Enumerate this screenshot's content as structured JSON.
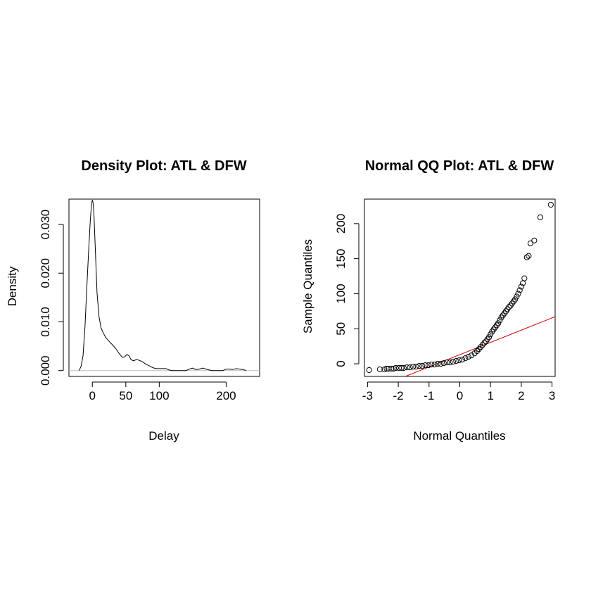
{
  "chart_data": [
    {
      "type": "line",
      "title": "Density Plot: ATL & DFW",
      "xlabel": "Delay",
      "ylabel": "Density",
      "xlim": [
        -35,
        250
      ],
      "ylim": [
        -0.0012,
        0.0352
      ],
      "x_ticks": [
        0,
        50,
        100,
        200
      ],
      "y_ticks": [
        0.0,
        0.01,
        0.02,
        0.03
      ],
      "y_tick_labels": [
        "0.000",
        "0.010",
        "0.020",
        "0.030"
      ],
      "baseline": 0,
      "baseline_color": "#c0c0c0",
      "line_color": "#000000",
      "series": [
        {
          "x": [
            -20,
            -17,
            -14,
            -11,
            -8,
            -5,
            -3,
            -1,
            0,
            1,
            2,
            3,
            5,
            7,
            10,
            13,
            16,
            20,
            25,
            30,
            35,
            40,
            45,
            48,
            52,
            55,
            58,
            62,
            66,
            70,
            75,
            80,
            85,
            90,
            95,
            100,
            110,
            115,
            120,
            125,
            130,
            135,
            140,
            145,
            150,
            155,
            160,
            165,
            170,
            175,
            180,
            185,
            190,
            195,
            200,
            205,
            210,
            215,
            220,
            225,
            230
          ],
          "y": [
            0.0,
            0.0008,
            0.003,
            0.009,
            0.018,
            0.026,
            0.031,
            0.0344,
            0.035,
            0.0345,
            0.033,
            0.03,
            0.023,
            0.016,
            0.011,
            0.0088,
            0.0078,
            0.0068,
            0.006,
            0.0053,
            0.0045,
            0.0035,
            0.0027,
            0.0028,
            0.0033,
            0.003,
            0.0022,
            0.002,
            0.0023,
            0.0021,
            0.0018,
            0.0013,
            0.001,
            0.0006,
            0.0004,
            0.0004,
            0.0004,
            0.0001,
            0.0,
            0.0,
            0.0,
            0.0,
            0.0,
            0.0003,
            0.0005,
            0.0002,
            0.0003,
            0.0005,
            0.0003,
            0.0001,
            0.0,
            0.0,
            0.0,
            0.0,
            0.0003,
            0.0003,
            0.0002,
            0.0004,
            0.0003,
            0.0002,
            0.0
          ]
        }
      ]
    },
    {
      "type": "scatter",
      "title": "Normal QQ Plot: ATL & DFW",
      "xlabel": "Normal Quantiles",
      "ylabel": "Sample Quantiles",
      "xlim": [
        -3.1,
        3.1
      ],
      "ylim": [
        -18,
        235
      ],
      "x_ticks": [
        -3,
        -2,
        -1,
        0,
        1,
        2,
        3
      ],
      "y_ticks": [
        0,
        50,
        100,
        150,
        200
      ],
      "marker": "open-circle",
      "marker_color": "#000000",
      "series": [
        {
          "x": [
            -2.95,
            -2.6,
            -2.45,
            -2.38,
            -2.32,
            -2.22,
            -2.15,
            -2.08,
            -1.98,
            -1.9,
            -1.82,
            -1.72,
            -1.62,
            -1.52,
            -1.42,
            -1.32,
            -1.22,
            -1.12,
            -1.02,
            -0.92,
            -0.82,
            -0.72,
            -0.62,
            -0.52,
            -0.42,
            -0.32,
            -0.22,
            -0.12,
            -0.02,
            0.08,
            0.18,
            0.28,
            0.38,
            0.48,
            0.56,
            0.62,
            0.68,
            0.74,
            0.8,
            0.85,
            0.9,
            0.95,
            1.0,
            1.05,
            1.1,
            1.15,
            1.2,
            1.25,
            1.3,
            1.35,
            1.4,
            1.45,
            1.5,
            1.55,
            1.6,
            1.65,
            1.7,
            1.75,
            1.8,
            1.85,
            1.9,
            1.95,
            2.0,
            2.05,
            2.1,
            2.18,
            2.24,
            2.3,
            2.42,
            2.62,
            2.96
          ],
          "y": [
            -9,
            -8,
            -8,
            -7,
            -7,
            -7,
            -7,
            -6,
            -6,
            -6,
            -6,
            -5,
            -5,
            -4,
            -4,
            -3,
            -3,
            -2,
            -2,
            -1,
            -1,
            0,
            0,
            1,
            2,
            2,
            3,
            4,
            5,
            6,
            8,
            10,
            12,
            15,
            18,
            21,
            24,
            27,
            30,
            32,
            35,
            38,
            42,
            46,
            49,
            52,
            55,
            58,
            62,
            66,
            69,
            72,
            75,
            78,
            81,
            83,
            86,
            89,
            92,
            96,
            100,
            105,
            110,
            115,
            122,
            152,
            154,
            172,
            176,
            209,
            227
          ]
        }
      ],
      "reference_line": {
        "intercept": 13,
        "slope": 17.5,
        "color": "#cc0000"
      }
    }
  ]
}
